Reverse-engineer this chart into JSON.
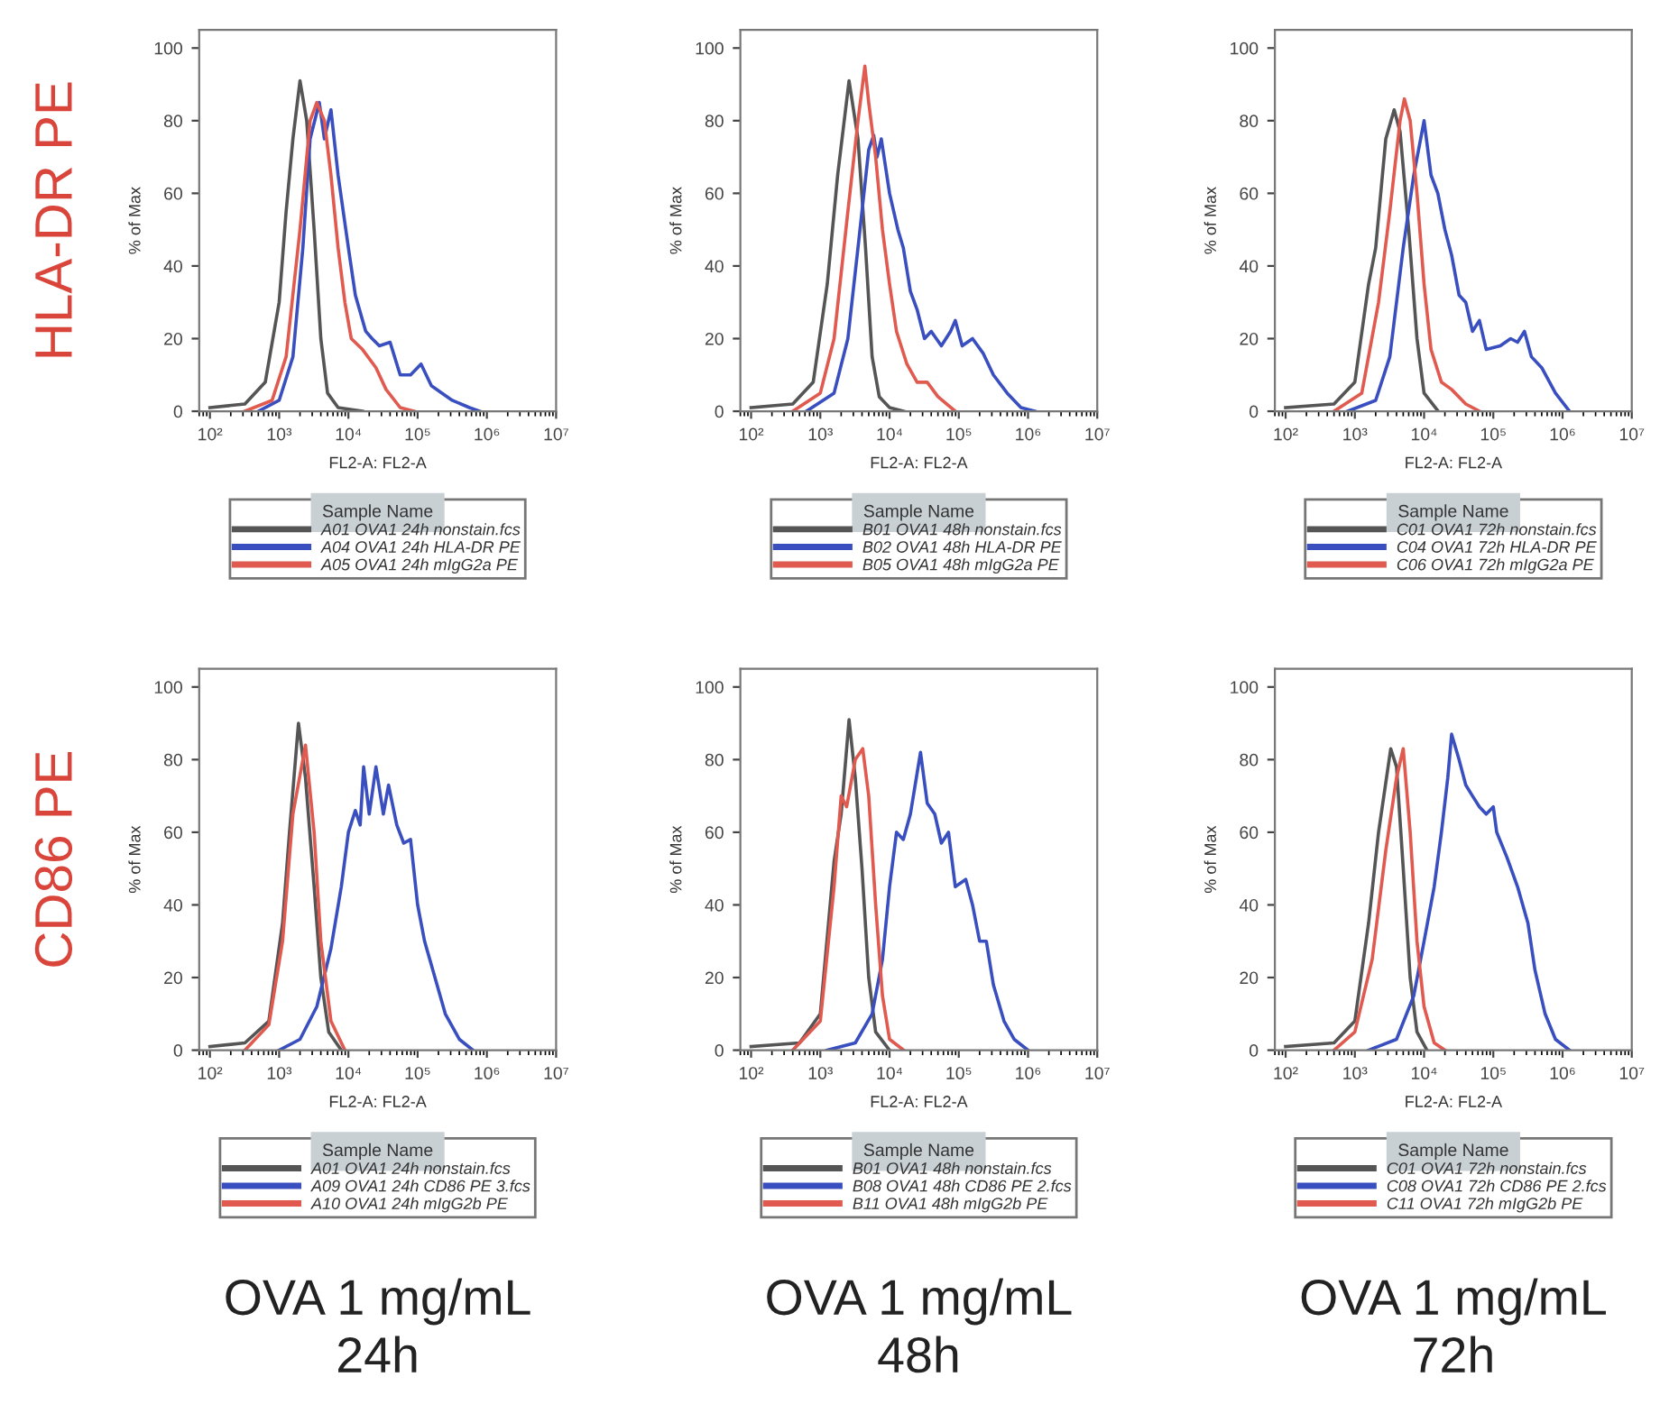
{
  "chart_data": [
    {
      "type": "line",
      "log": "x",
      "xlabel": "FL2-A: FL2-A",
      "ylabel": "% of Max",
      "xlim": [
        70,
        10000000
      ],
      "ylim": [
        0,
        105
      ],
      "xticks": [
        {
          "value": 100,
          "label": "10²"
        },
        {
          "value": 1000,
          "label": "10³"
        },
        {
          "value": 10000,
          "label": "10⁴"
        },
        {
          "value": 100000,
          "label": "10⁵"
        },
        {
          "value": 1000000,
          "label": "10⁶"
        },
        {
          "value": 10000000,
          "label": "10⁷"
        }
      ],
      "yticks": [
        0,
        20,
        40,
        60,
        80,
        100
      ],
      "legend": "bottom",
      "legend_title": "Sample Name",
      "annotations": [
        "HLA-DR PE"
      ],
      "series": [
        {
          "name": "A01 OVA1 24h nonstain.fcs",
          "color": "#555555",
          "x": [
            100,
            320,
            630,
            1000,
            1260,
            1580,
            2000,
            2500,
            3200,
            4000,
            5000,
            7100,
            16000
          ],
          "values": [
            1,
            2,
            8,
            30,
            55,
            75,
            91,
            80,
            50,
            20,
            5,
            1,
            0
          ]
        },
        {
          "name": "A04 OVA1 24h HLA-DR PE",
          "color": "#3a4fbf",
          "x": [
            500,
            1000,
            1580,
            2200,
            2800,
            3800,
            4500,
            5600,
            7100,
            10000,
            12600,
            17800,
            22000,
            28000,
            40000,
            56000,
            79000,
            112000,
            158000,
            316000,
            560000,
            790000
          ],
          "values": [
            0,
            3,
            15,
            45,
            75,
            85,
            75,
            83,
            65,
            45,
            32,
            22,
            20,
            18,
            19,
            10,
            10,
            13,
            7,
            3,
            1,
            0
          ]
        },
        {
          "name": "A05 OVA1 24h mIgG2a PE",
          "color": "#e05a4f",
          "x": [
            320,
            790,
            1260,
            2000,
            2800,
            3500,
            4500,
            5600,
            7100,
            8900,
            11000,
            16000,
            25000,
            35000,
            56000,
            89000
          ],
          "values": [
            0,
            3,
            15,
            50,
            80,
            85,
            80,
            65,
            45,
            30,
            20,
            17,
            12,
            6,
            1,
            0
          ]
        }
      ]
    },
    {
      "type": "line",
      "log": "x",
      "xlabel": "FL2-A: FL2-A",
      "ylabel": "% of Max",
      "xlim": [
        70,
        10000000
      ],
      "ylim": [
        0,
        105
      ],
      "xticks": [
        {
          "value": 100,
          "label": "10²"
        },
        {
          "value": 1000,
          "label": "10³"
        },
        {
          "value": 10000,
          "label": "10⁴"
        },
        {
          "value": 100000,
          "label": "10⁵"
        },
        {
          "value": 1000000,
          "label": "10⁶"
        },
        {
          "value": 10000000,
          "label": "10⁷"
        }
      ],
      "yticks": [
        0,
        20,
        40,
        60,
        80,
        100
      ],
      "legend": "bottom",
      "legend_title": "Sample Name",
      "series": [
        {
          "name": "B01 OVA1 48h nonstain.fcs",
          "color": "#555555",
          "x": [
            100,
            400,
            790,
            1260,
            1780,
            2600,
            3500,
            4500,
            5600,
            7100,
            10000,
            16000
          ],
          "values": [
            1,
            2,
            8,
            35,
            65,
            91,
            75,
            45,
            15,
            4,
            1,
            0
          ]
        },
        {
          "name": "B02 OVA1 48h HLA-DR PE",
          "color": "#3a4fbf",
          "x": [
            630,
            1580,
            2500,
            3500,
            5000,
            5900,
            6600,
            7600,
            10000,
            13200,
            15800,
            20000,
            25000,
            32000,
            40000,
            56000,
            76000,
            89000,
            112000,
            158000,
            224000,
            316000,
            500000,
            790000,
            1260000
          ],
          "values": [
            0,
            5,
            20,
            45,
            72,
            76,
            70,
            75,
            60,
            50,
            45,
            33,
            28,
            20,
            22,
            18,
            22,
            25,
            18,
            20,
            16,
            10,
            5,
            1,
            0
          ]
        },
        {
          "name": "B05 OVA1 48h mIgG2a PE",
          "color": "#e05a4f",
          "x": [
            400,
            1000,
            1580,
            2500,
            3500,
            4400,
            5000,
            6300,
            7900,
            10000,
            12600,
            17800,
            25000,
            35000,
            50000,
            89000
          ],
          "values": [
            0,
            5,
            20,
            55,
            80,
            95,
            85,
            70,
            50,
            35,
            22,
            13,
            8,
            8,
            4,
            0
          ]
        }
      ]
    },
    {
      "type": "line",
      "log": "x",
      "xlabel": "FL2-A: FL2-A",
      "ylabel": "% of Max",
      "xlim": [
        70,
        10000000
      ],
      "ylim": [
        0,
        105
      ],
      "xticks": [
        {
          "value": 100,
          "label": "10²"
        },
        {
          "value": 1000,
          "label": "10³"
        },
        {
          "value": 10000,
          "label": "10⁴"
        },
        {
          "value": 100000,
          "label": "10⁵"
        },
        {
          "value": 1000000,
          "label": "10⁶"
        },
        {
          "value": 10000000,
          "label": "10⁷"
        }
      ],
      "yticks": [
        0,
        20,
        40,
        60,
        80,
        100
      ],
      "legend": "bottom",
      "legend_title": "Sample Name",
      "series": [
        {
          "name": "C01 OVA1 72h nonstain.fcs",
          "color": "#555555",
          "x": [
            100,
            500,
            1000,
            1580,
            2000,
            2800,
            3700,
            4500,
            6000,
            7900,
            10000,
            16000
          ],
          "values": [
            1,
            2,
            8,
            35,
            45,
            75,
            83,
            77,
            50,
            20,
            5,
            0
          ]
        },
        {
          "name": "C04 OVA1 72h HLA-DR PE",
          "color": "#3a4fbf",
          "x": [
            790,
            2000,
            3200,
            5000,
            7100,
            10000,
            12600,
            15800,
            20000,
            25000,
            32000,
            40000,
            50000,
            63000,
            79000,
            126000,
            178000,
            224000,
            282000,
            355000,
            500000,
            790000,
            1260000
          ],
          "values": [
            0,
            3,
            15,
            45,
            65,
            80,
            65,
            60,
            50,
            43,
            32,
            30,
            22,
            25,
            17,
            18,
            20,
            19,
            22,
            15,
            12,
            5,
            0
          ]
        },
        {
          "name": "C06 OVA1 72h mIgG2a PE",
          "color": "#e05a4f",
          "x": [
            500,
            1260,
            2200,
            3200,
            4500,
            5200,
            6300,
            7900,
            10000,
            12600,
            17800,
            25000,
            40000,
            63000
          ],
          "values": [
            0,
            5,
            30,
            55,
            80,
            86,
            80,
            60,
            35,
            17,
            8,
            6,
            2,
            0
          ]
        }
      ]
    },
    {
      "type": "line",
      "log": "x",
      "xlabel": "FL2-A: FL2-A",
      "ylabel": "% of Max",
      "xlim": [
        70,
        10000000
      ],
      "ylim": [
        0,
        105
      ],
      "xticks": [
        {
          "value": 100,
          "label": "10²"
        },
        {
          "value": 1000,
          "label": "10³"
        },
        {
          "value": 10000,
          "label": "10⁴"
        },
        {
          "value": 100000,
          "label": "10⁵"
        },
        {
          "value": 1000000,
          "label": "10⁶"
        },
        {
          "value": 10000000,
          "label": "10⁷"
        }
      ],
      "yticks": [
        0,
        20,
        40,
        60,
        80,
        100
      ],
      "legend": "bottom",
      "legend_title": "Sample Name",
      "annotations": [
        "CD86 PE",
        "OVA 1 mg/mL\n24h"
      ],
      "series": [
        {
          "name": "A01 OVA1 24h nonstain.fcs",
          "color": "#555555",
          "x": [
            100,
            320,
            710,
            1120,
            1410,
            1900,
            2400,
            3200,
            4000,
            5200,
            7900
          ],
          "values": [
            1,
            2,
            8,
            35,
            60,
            90,
            75,
            45,
            20,
            5,
            0
          ]
        },
        {
          "name": "A09 OVA1 24h CD86 PE 3.fcs",
          "color": "#3a4fbf",
          "x": [
            1000,
            2000,
            3500,
            5600,
            7900,
            10000,
            12600,
            14800,
            16600,
            20000,
            25000,
            32000,
            38000,
            50000,
            63000,
            79000,
            100000,
            126000,
            178000,
            251000,
            400000,
            630000
          ],
          "values": [
            0,
            3,
            12,
            28,
            45,
            60,
            66,
            62,
            78,
            65,
            78,
            65,
            73,
            62,
            57,
            58,
            40,
            30,
            20,
            10,
            3,
            0
          ]
        },
        {
          "name": "A10 OVA1 24h mIgG2b PE",
          "color": "#e05a4f",
          "x": [
            320,
            710,
            1120,
            1580,
            2400,
            3200,
            4000,
            5600,
            8900
          ],
          "values": [
            0,
            7,
            30,
            65,
            84,
            60,
            30,
            8,
            0
          ]
        }
      ]
    },
    {
      "type": "line",
      "log": "x",
      "xlabel": "FL2-A: FL2-A",
      "ylabel": "% of Max",
      "xlim": [
        70,
        10000000
      ],
      "ylim": [
        0,
        105
      ],
      "xticks": [
        {
          "value": 100,
          "label": "10²"
        },
        {
          "value": 1000,
          "label": "10³"
        },
        {
          "value": 10000,
          "label": "10⁴"
        },
        {
          "value": 100000,
          "label": "10⁵"
        },
        {
          "value": 1000000,
          "label": "10⁶"
        },
        {
          "value": 10000000,
          "label": "10⁷"
        }
      ],
      "yticks": [
        0,
        20,
        40,
        60,
        80,
        100
      ],
      "legend": "bottom",
      "legend_title": "Sample Name",
      "annotations": [
        "OVA 1 mg/mL\n48h"
      ],
      "series": [
        {
          "name": "B01 OVA1 48h nonstain.fcs",
          "color": "#555555",
          "x": [
            100,
            500,
            1000,
            1580,
            2000,
            2600,
            3200,
            4000,
            5000,
            6300,
            10000
          ],
          "values": [
            1,
            2,
            10,
            52,
            65,
            91,
            75,
            50,
            20,
            5,
            0
          ]
        },
        {
          "name": "B08 OVA1 48h CD86 PE 2.fcs",
          "color": "#3a4fbf",
          "x": [
            1260,
            3200,
            5600,
            7900,
            10000,
            12600,
            15800,
            20000,
            28000,
            35000,
            45000,
            56000,
            71000,
            89000,
            126000,
            158000,
            200000,
            250000,
            316000,
            450000,
            630000,
            1000000
          ],
          "values": [
            0,
            2,
            10,
            25,
            45,
            60,
            58,
            65,
            82,
            68,
            65,
            57,
            60,
            45,
            47,
            40,
            30,
            30,
            18,
            8,
            3,
            0
          ]
        },
        {
          "name": "B11 OVA1 48h mIgG2b PE",
          "color": "#e05a4f",
          "x": [
            400,
            1000,
            1580,
            2000,
            2400,
            3200,
            4100,
            5000,
            6300,
            7900,
            10000,
            16000
          ],
          "values": [
            0,
            8,
            45,
            70,
            67,
            80,
            83,
            70,
            40,
            15,
            3,
            0
          ]
        }
      ]
    },
    {
      "type": "line",
      "log": "x",
      "xlabel": "FL2-A: FL2-A",
      "ylabel": "% of Max",
      "xlim": [
        70,
        10000000
      ],
      "ylim": [
        0,
        105
      ],
      "xticks": [
        {
          "value": 100,
          "label": "10²"
        },
        {
          "value": 1000,
          "label": "10³"
        },
        {
          "value": 10000,
          "label": "10⁴"
        },
        {
          "value": 100000,
          "label": "10⁵"
        },
        {
          "value": 1000000,
          "label": "10⁶"
        },
        {
          "value": 10000000,
          "label": "10⁷"
        }
      ],
      "yticks": [
        0,
        20,
        40,
        60,
        80,
        100
      ],
      "legend": "bottom",
      "legend_title": "Sample Name",
      "annotations": [
        "OVA 1 mg/mL\n72h"
      ],
      "series": [
        {
          "name": "C01 OVA1 72h nonstain.fcs",
          "color": "#555555",
          "x": [
            100,
            500,
            1000,
            1580,
            2200,
            3300,
            4000,
            5000,
            6300,
            7900,
            11000
          ],
          "values": [
            1,
            2,
            8,
            35,
            60,
            83,
            78,
            50,
            20,
            5,
            0
          ]
        },
        {
          "name": "C08 OVA1 72h CD86 PE 2.fcs",
          "color": "#3a4fbf",
          "x": [
            1580,
            4000,
            7100,
            10000,
            14000,
            17800,
            22000,
            25000,
            32000,
            40000,
            50000,
            63000,
            79000,
            100000,
            112000,
            158000,
            224000,
            316000,
            400000,
            560000,
            790000,
            1260000
          ],
          "values": [
            0,
            3,
            15,
            30,
            45,
            60,
            75,
            87,
            80,
            73,
            70,
            67,
            65,
            67,
            60,
            53,
            45,
            35,
            22,
            10,
            3,
            0
          ]
        },
        {
          "name": "C11 OVA1 72h mIgG2b PE",
          "color": "#e05a4f",
          "x": [
            500,
            1000,
            1780,
            2800,
            4000,
            5000,
            6300,
            7900,
            10000,
            14000,
            20000
          ],
          "values": [
            0,
            5,
            25,
            55,
            75,
            83,
            60,
            30,
            12,
            2,
            0
          ]
        }
      ]
    }
  ]
}
